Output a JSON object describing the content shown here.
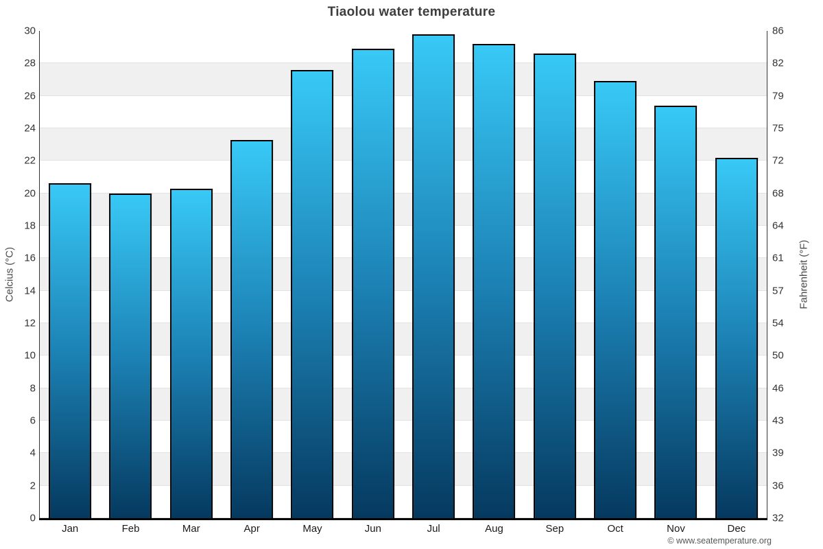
{
  "chart": {
    "title": "Tiaolou water temperature",
    "copyright": "© www.seatemperature.org",
    "ylabel_left": "Celcius (°C)",
    "ylabel_right": "Fahrenheit (°F)"
  },
  "chart_data": {
    "type": "bar",
    "title": "Tiaolou water temperature",
    "categories": [
      "Jan",
      "Feb",
      "Mar",
      "Apr",
      "May",
      "Jun",
      "Jul",
      "Aug",
      "Sep",
      "Oct",
      "Nov",
      "Dec"
    ],
    "values": [
      20.6,
      20.0,
      20.3,
      23.3,
      27.6,
      28.9,
      29.8,
      29.2,
      28.6,
      26.9,
      25.4,
      22.2
    ],
    "xlabel": "",
    "ylabel_left": "Celcius (°C)",
    "ylabel_right": "Fahrenheit (°F)",
    "ylim": [
      0,
      30
    ],
    "celsius_ticks": [
      30,
      28,
      26,
      24,
      22,
      20,
      18,
      16,
      14,
      12,
      10,
      8,
      6,
      4,
      2,
      0
    ],
    "fahrenheit_tick_labels": [
      "86",
      "82",
      "79",
      "75",
      "72",
      "68",
      "64",
      "61",
      "57",
      "54",
      "50",
      "46",
      "43",
      "39",
      "36",
      "32"
    ],
    "grid": "horizontal alternating bands, no vertical gridlines",
    "legend": "none",
    "colors": {
      "bar_gradient_top": "#38C9F6",
      "bar_gradient_mid": "#1C82B5",
      "bar_gradient_bottom": "#05395F",
      "bar_border": "#000000",
      "band_shade": "#F0F0F0",
      "gridline": "#E2E2E2",
      "side_axis_line": "#333333",
      "bottom_axis_line": "#000000"
    }
  }
}
